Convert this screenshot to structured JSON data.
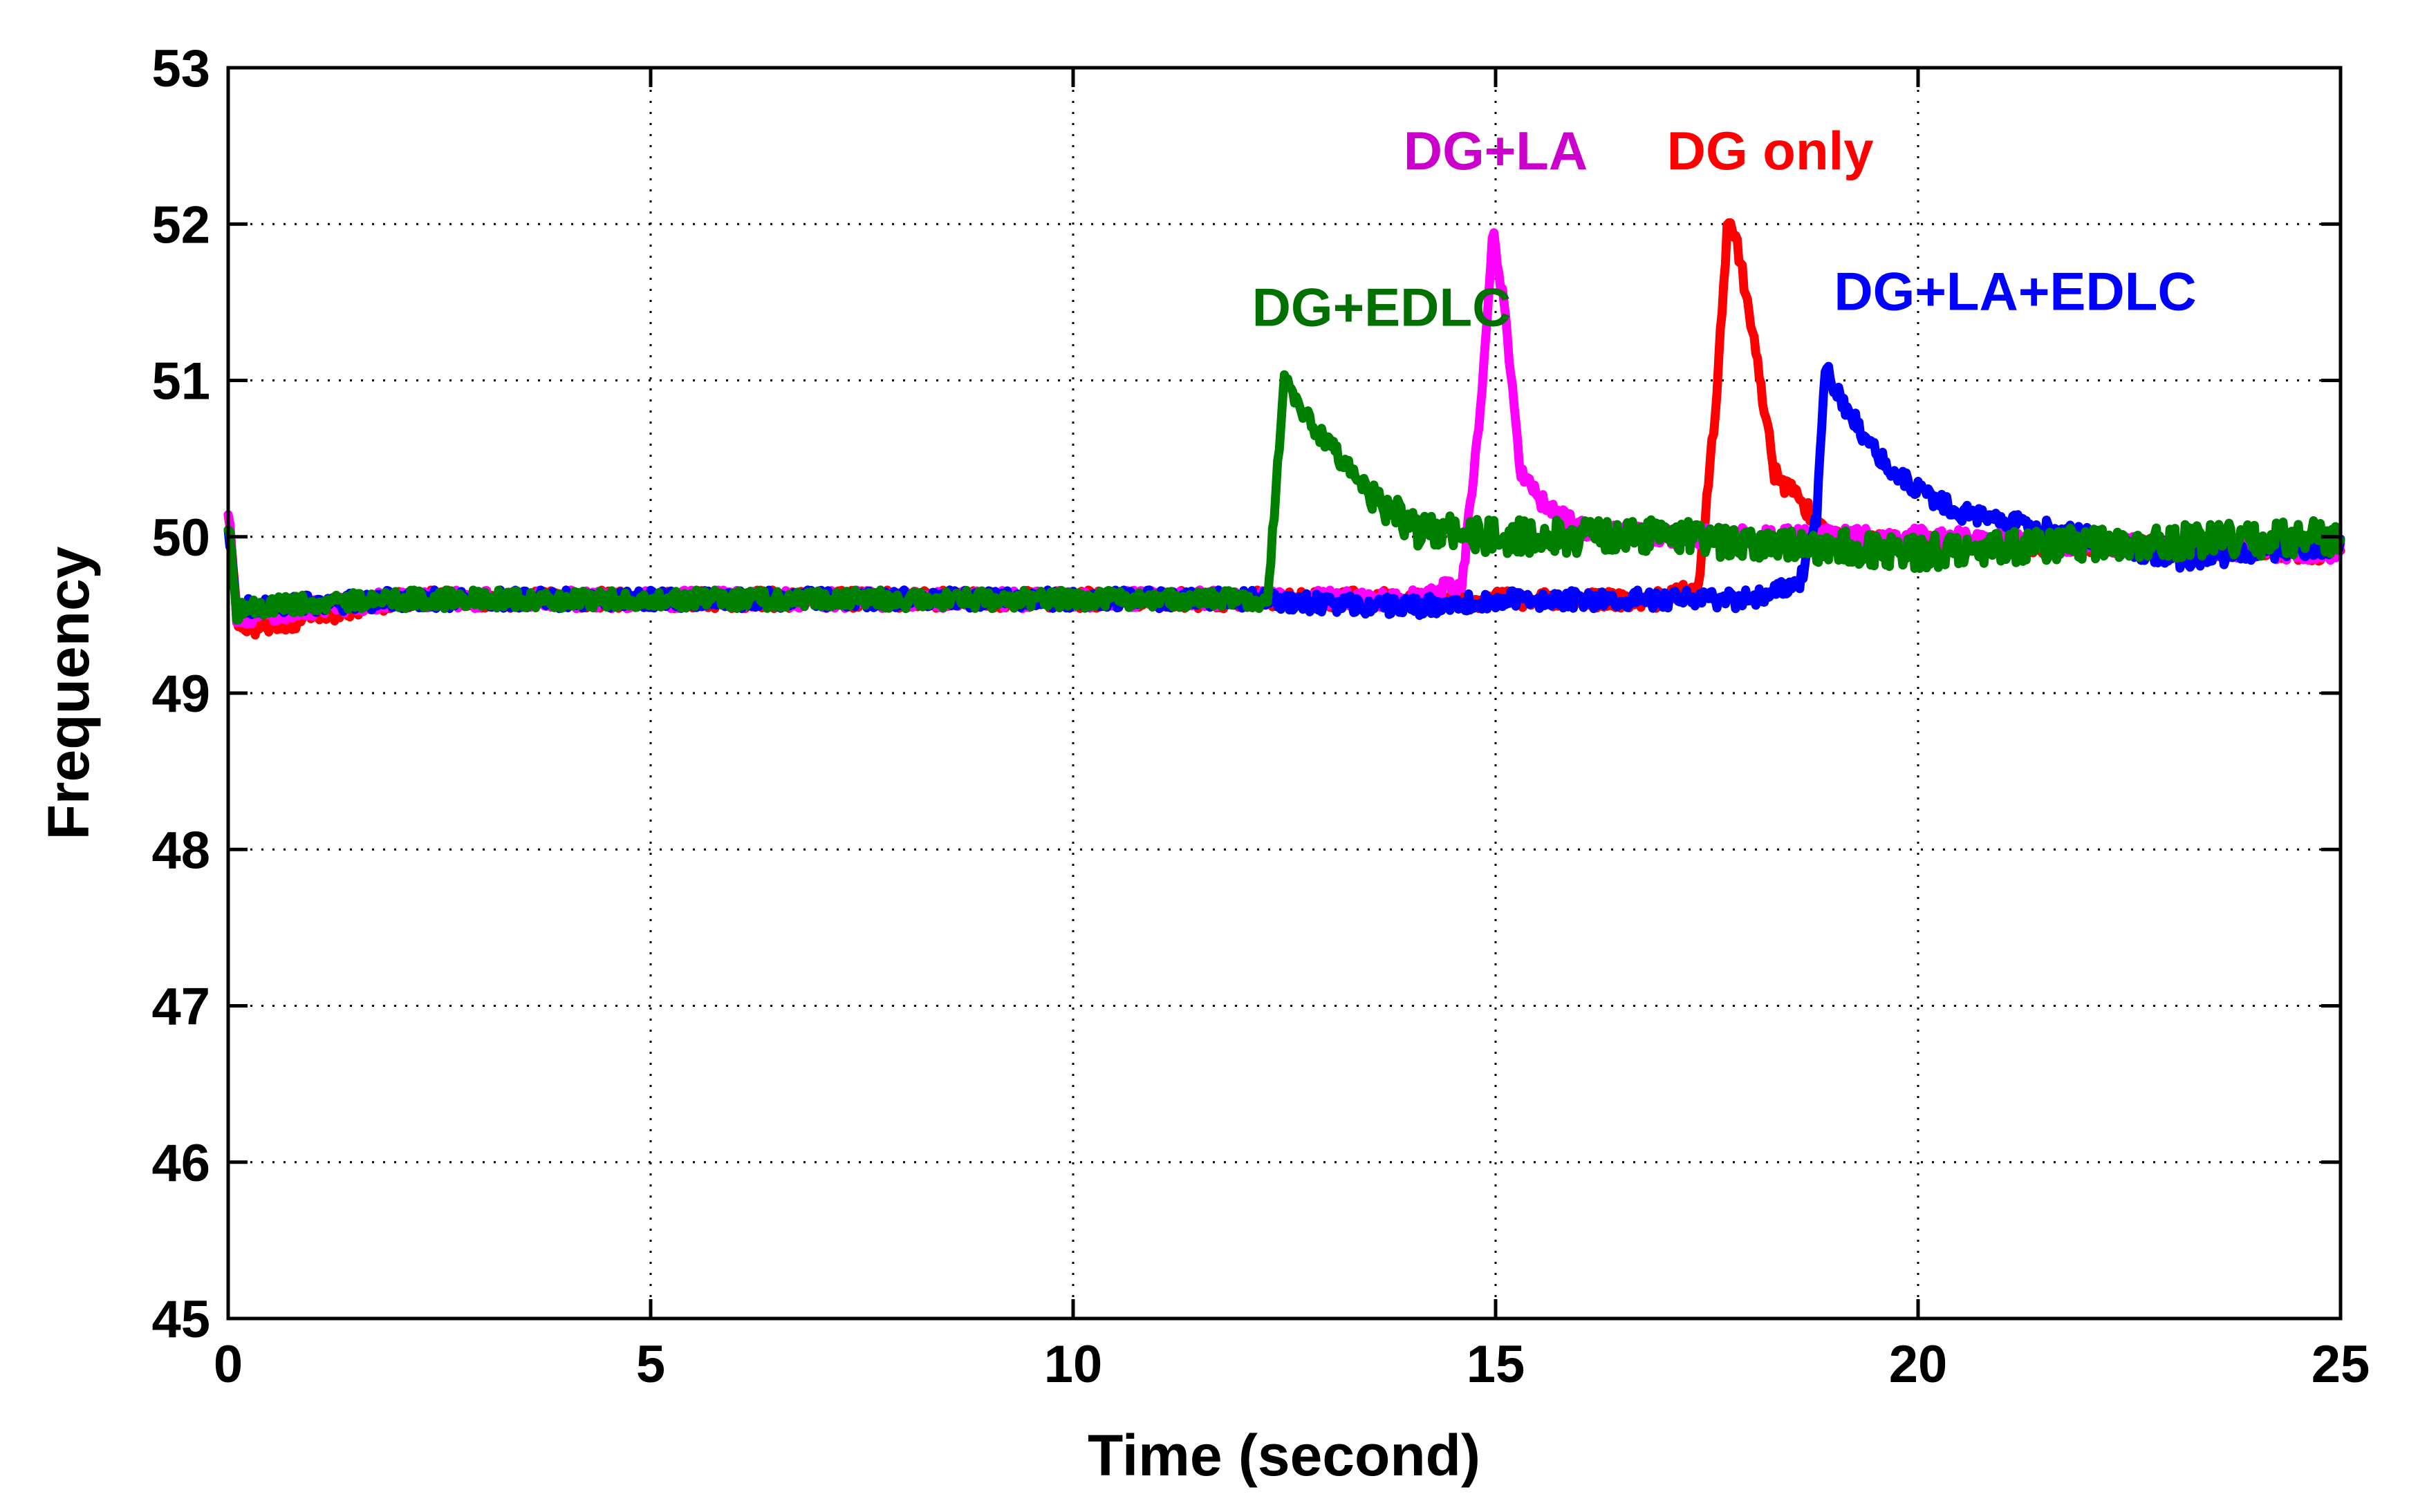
{
  "chart_data": {
    "type": "line",
    "title": "",
    "xlabel": "Time (second)",
    "ylabel": "Frequency",
    "xlim": [
      0,
      25
    ],
    "ylim": [
      45,
      53
    ],
    "xticks": [
      0,
      5,
      10,
      15,
      20,
      25
    ],
    "yticks": [
      45,
      46,
      47,
      48,
      49,
      50,
      51,
      52,
      53
    ],
    "grid": true,
    "series": [
      {
        "name": "DG only",
        "color": "#ff0000",
        "x": [
          0,
          0.1,
          0.2,
          2,
          5,
          8,
          10,
          12,
          14,
          15,
          16,
          17,
          17.4,
          17.6,
          17.75,
          17.85,
          17.95,
          18.1,
          18.3,
          19,
          20,
          22,
          25
        ],
        "y": [
          50.2,
          49.5,
          49.4,
          49.6,
          49.6,
          49.6,
          49.6,
          49.6,
          49.6,
          49.6,
          49.6,
          49.6,
          49.7,
          50.8,
          52.05,
          51.9,
          51.6,
          51.1,
          50.4,
          50.0,
          49.95,
          49.95,
          49.9
        ]
      },
      {
        "name": "DG+LA",
        "color": "#ff00ff",
        "x": [
          0,
          0.1,
          0.2,
          2,
          5,
          8,
          10,
          12,
          14,
          14.6,
          14.8,
          14.97,
          15.1,
          15.3,
          15.6,
          16,
          17,
          18,
          20,
          22,
          25
        ],
        "y": [
          50.2,
          49.5,
          49.5,
          49.6,
          49.6,
          49.6,
          49.6,
          49.6,
          49.6,
          49.7,
          50.7,
          51.95,
          51.5,
          50.4,
          50.2,
          50.05,
          50.0,
          50.0,
          50.0,
          49.95,
          49.9
        ]
      },
      {
        "name": "DG+EDLC",
        "color": "#008000",
        "x": [
          0,
          0.1,
          0.2,
          2,
          5,
          8,
          10,
          12,
          12.3,
          12.4,
          12.5,
          12.7,
          13.0,
          13.5,
          14.0,
          15,
          17,
          20,
          22,
          25
        ],
        "y": [
          50.1,
          49.5,
          49.55,
          49.6,
          49.6,
          49.6,
          49.6,
          49.6,
          49.6,
          50.3,
          51.0,
          50.8,
          50.6,
          50.3,
          50.05,
          50.0,
          50.0,
          49.9,
          49.95,
          50.0
        ]
      },
      {
        "name": "DG+LA+EDLC",
        "color": "#0000ff",
        "x": [
          0,
          0.1,
          0.2,
          2,
          5,
          8,
          10,
          12,
          14,
          15,
          16,
          17,
          18,
          18.6,
          18.8,
          18.9,
          19.0,
          19.3,
          19.7,
          20.5,
          22,
          23,
          25
        ],
        "y": [
          50.1,
          49.5,
          49.55,
          49.6,
          49.6,
          49.6,
          49.6,
          49.6,
          49.55,
          49.6,
          49.6,
          49.6,
          49.6,
          49.7,
          50.1,
          51.1,
          50.95,
          50.7,
          50.4,
          50.15,
          50.0,
          49.85,
          49.95
        ]
      }
    ],
    "annotations": [
      {
        "text": "DG+LA",
        "color": "#cc00cc",
        "x": 15.0,
        "y": 52.35
      },
      {
        "text": "DG only",
        "color": "#ff0000",
        "x": 18.25,
        "y": 52.35
      },
      {
        "text": "DG+EDLC",
        "color": "#007000",
        "x": 13.65,
        "y": 51.35
      },
      {
        "text": "DG+LA+EDLC",
        "color": "#0000ff",
        "x": 21.15,
        "y": 51.45
      }
    ]
  }
}
